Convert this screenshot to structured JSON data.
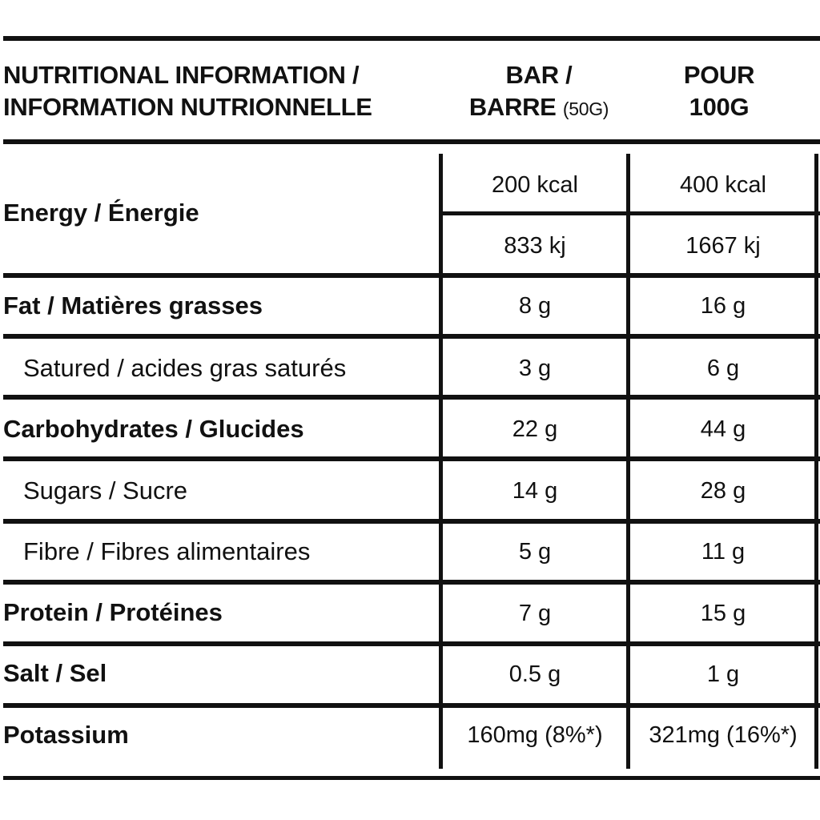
{
  "header": {
    "title_line1": "NUTRITIONAL INFORMATION /",
    "title_line2": "INFORMATION NUTRIONNELLE",
    "col1_line1": "BAR /",
    "col1_line2": "BARRE",
    "col1_note": "(50G)",
    "col2_line1": "POUR",
    "col2_line2": "100G"
  },
  "energy": {
    "label": "Energy / Énergie",
    "bar_kcal": "200 kcal",
    "per100_kcal": "400 kcal",
    "bar_kj": "833 kj",
    "per100_kj": "1667 kj"
  },
  "rows": [
    {
      "label": "Fat / Matières grasses",
      "bar": "8 g",
      "per100": "16 g"
    },
    {
      "label": "Satured / acides gras saturés",
      "bar": "3 g",
      "per100": "6 g"
    },
    {
      "label": "Carbohydrates / Glucides",
      "bar": "22 g",
      "per100": "44 g"
    },
    {
      "label": "Sugars / Sucre",
      "bar": "14 g",
      "per100": "28 g"
    },
    {
      "label": "Fibre / Fibres alimentaires",
      "bar": "5 g",
      "per100": "11 g"
    },
    {
      "label": "Protein / Protéines",
      "bar": "7 g",
      "per100": "15 g"
    },
    {
      "label": "Salt / Sel",
      "bar": "0.5 g",
      "per100": "1 g"
    },
    {
      "label": "Potassium",
      "bar": "160mg (8%*)",
      "per100": "321mg (16%*)"
    }
  ]
}
